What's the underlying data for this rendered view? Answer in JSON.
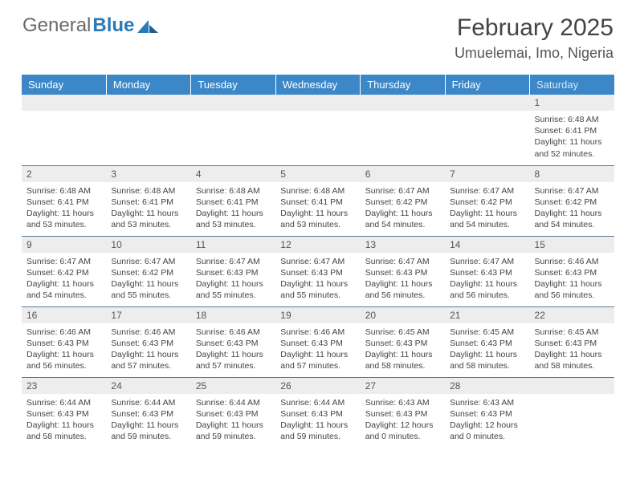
{
  "brand": {
    "word1": "General",
    "word2": "Blue"
  },
  "title": "February 2025",
  "location": "Umuelemai, Imo, Nigeria",
  "colors": {
    "header_bg": "#3b87c8",
    "header_text": "#ffffff",
    "daynum_bg": "#ededed",
    "row_border": "#5a7a9a",
    "brand_gray": "#6a6a6a",
    "brand_blue": "#2a7ab8"
  },
  "day_headers": [
    "Sunday",
    "Monday",
    "Tuesday",
    "Wednesday",
    "Thursday",
    "Friday",
    "Saturday"
  ],
  "weeks": [
    [
      {
        "n": "",
        "sr": "",
        "ss": "",
        "dl": ""
      },
      {
        "n": "",
        "sr": "",
        "ss": "",
        "dl": ""
      },
      {
        "n": "",
        "sr": "",
        "ss": "",
        "dl": ""
      },
      {
        "n": "",
        "sr": "",
        "ss": "",
        "dl": ""
      },
      {
        "n": "",
        "sr": "",
        "ss": "",
        "dl": ""
      },
      {
        "n": "",
        "sr": "",
        "ss": "",
        "dl": ""
      },
      {
        "n": "1",
        "sr": "Sunrise: 6:48 AM",
        "ss": "Sunset: 6:41 PM",
        "dl": "Daylight: 11 hours and 52 minutes."
      }
    ],
    [
      {
        "n": "2",
        "sr": "Sunrise: 6:48 AM",
        "ss": "Sunset: 6:41 PM",
        "dl": "Daylight: 11 hours and 53 minutes."
      },
      {
        "n": "3",
        "sr": "Sunrise: 6:48 AM",
        "ss": "Sunset: 6:41 PM",
        "dl": "Daylight: 11 hours and 53 minutes."
      },
      {
        "n": "4",
        "sr": "Sunrise: 6:48 AM",
        "ss": "Sunset: 6:41 PM",
        "dl": "Daylight: 11 hours and 53 minutes."
      },
      {
        "n": "5",
        "sr": "Sunrise: 6:48 AM",
        "ss": "Sunset: 6:41 PM",
        "dl": "Daylight: 11 hours and 53 minutes."
      },
      {
        "n": "6",
        "sr": "Sunrise: 6:47 AM",
        "ss": "Sunset: 6:42 PM",
        "dl": "Daylight: 11 hours and 54 minutes."
      },
      {
        "n": "7",
        "sr": "Sunrise: 6:47 AM",
        "ss": "Sunset: 6:42 PM",
        "dl": "Daylight: 11 hours and 54 minutes."
      },
      {
        "n": "8",
        "sr": "Sunrise: 6:47 AM",
        "ss": "Sunset: 6:42 PM",
        "dl": "Daylight: 11 hours and 54 minutes."
      }
    ],
    [
      {
        "n": "9",
        "sr": "Sunrise: 6:47 AM",
        "ss": "Sunset: 6:42 PM",
        "dl": "Daylight: 11 hours and 54 minutes."
      },
      {
        "n": "10",
        "sr": "Sunrise: 6:47 AM",
        "ss": "Sunset: 6:42 PM",
        "dl": "Daylight: 11 hours and 55 minutes."
      },
      {
        "n": "11",
        "sr": "Sunrise: 6:47 AM",
        "ss": "Sunset: 6:43 PM",
        "dl": "Daylight: 11 hours and 55 minutes."
      },
      {
        "n": "12",
        "sr": "Sunrise: 6:47 AM",
        "ss": "Sunset: 6:43 PM",
        "dl": "Daylight: 11 hours and 55 minutes."
      },
      {
        "n": "13",
        "sr": "Sunrise: 6:47 AM",
        "ss": "Sunset: 6:43 PM",
        "dl": "Daylight: 11 hours and 56 minutes."
      },
      {
        "n": "14",
        "sr": "Sunrise: 6:47 AM",
        "ss": "Sunset: 6:43 PM",
        "dl": "Daylight: 11 hours and 56 minutes."
      },
      {
        "n": "15",
        "sr": "Sunrise: 6:46 AM",
        "ss": "Sunset: 6:43 PM",
        "dl": "Daylight: 11 hours and 56 minutes."
      }
    ],
    [
      {
        "n": "16",
        "sr": "Sunrise: 6:46 AM",
        "ss": "Sunset: 6:43 PM",
        "dl": "Daylight: 11 hours and 56 minutes."
      },
      {
        "n": "17",
        "sr": "Sunrise: 6:46 AM",
        "ss": "Sunset: 6:43 PM",
        "dl": "Daylight: 11 hours and 57 minutes."
      },
      {
        "n": "18",
        "sr": "Sunrise: 6:46 AM",
        "ss": "Sunset: 6:43 PM",
        "dl": "Daylight: 11 hours and 57 minutes."
      },
      {
        "n": "19",
        "sr": "Sunrise: 6:46 AM",
        "ss": "Sunset: 6:43 PM",
        "dl": "Daylight: 11 hours and 57 minutes."
      },
      {
        "n": "20",
        "sr": "Sunrise: 6:45 AM",
        "ss": "Sunset: 6:43 PM",
        "dl": "Daylight: 11 hours and 58 minutes."
      },
      {
        "n": "21",
        "sr": "Sunrise: 6:45 AM",
        "ss": "Sunset: 6:43 PM",
        "dl": "Daylight: 11 hours and 58 minutes."
      },
      {
        "n": "22",
        "sr": "Sunrise: 6:45 AM",
        "ss": "Sunset: 6:43 PM",
        "dl": "Daylight: 11 hours and 58 minutes."
      }
    ],
    [
      {
        "n": "23",
        "sr": "Sunrise: 6:44 AM",
        "ss": "Sunset: 6:43 PM",
        "dl": "Daylight: 11 hours and 58 minutes."
      },
      {
        "n": "24",
        "sr": "Sunrise: 6:44 AM",
        "ss": "Sunset: 6:43 PM",
        "dl": "Daylight: 11 hours and 59 minutes."
      },
      {
        "n": "25",
        "sr": "Sunrise: 6:44 AM",
        "ss": "Sunset: 6:43 PM",
        "dl": "Daylight: 11 hours and 59 minutes."
      },
      {
        "n": "26",
        "sr": "Sunrise: 6:44 AM",
        "ss": "Sunset: 6:43 PM",
        "dl": "Daylight: 11 hours and 59 minutes."
      },
      {
        "n": "27",
        "sr": "Sunrise: 6:43 AM",
        "ss": "Sunset: 6:43 PM",
        "dl": "Daylight: 12 hours and 0 minutes."
      },
      {
        "n": "28",
        "sr": "Sunrise: 6:43 AM",
        "ss": "Sunset: 6:43 PM",
        "dl": "Daylight: 12 hours and 0 minutes."
      },
      {
        "n": "",
        "sr": "",
        "ss": "",
        "dl": ""
      }
    ]
  ]
}
